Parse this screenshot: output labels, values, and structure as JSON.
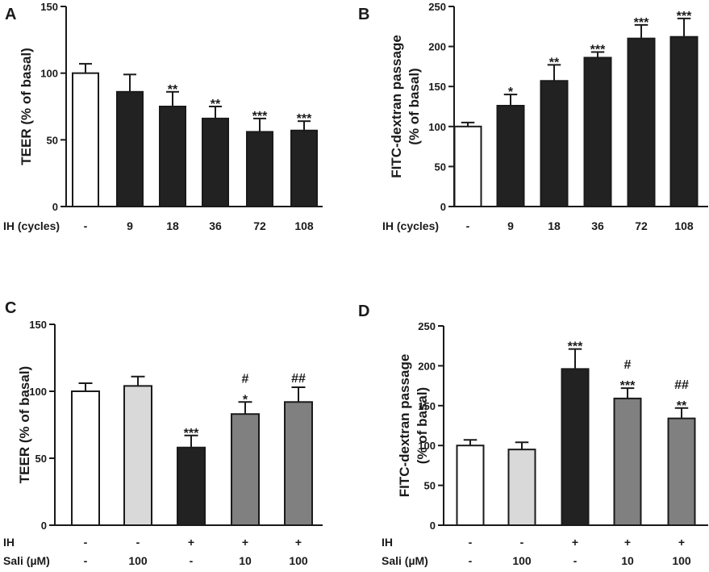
{
  "chart_data": [
    {
      "panel": "A",
      "type": "bar",
      "ylabel": "TEER (% of basal)",
      "ylim": [
        0,
        150
      ],
      "yticks": [
        0,
        50,
        100,
        150
      ],
      "row_labels": [
        "IH (cycles)"
      ],
      "categories": [
        [
          "-"
        ],
        [
          "9"
        ],
        [
          "18"
        ],
        [
          "36"
        ],
        [
          "72"
        ],
        [
          "108"
        ]
      ],
      "values": [
        100,
        86,
        75,
        66,
        56,
        57
      ],
      "errors": [
        7,
        13,
        11,
        9,
        10,
        7
      ],
      "colors": [
        "#ffffff",
        "#222222",
        "#222222",
        "#222222",
        "#222222",
        "#222222"
      ],
      "annotations": [
        [],
        [],
        [
          "**"
        ],
        [
          "**"
        ],
        [
          "***"
        ],
        [
          "***"
        ]
      ]
    },
    {
      "panel": "B",
      "type": "bar",
      "ylabel": "FITC-dextran passage (% of basal)",
      "ylabel_lines": [
        "FITC-dextran passage",
        "(% of basal)"
      ],
      "ylim": [
        0,
        250
      ],
      "yticks": [
        0,
        50,
        100,
        150,
        200,
        250
      ],
      "row_labels": [
        "IH (cycles)"
      ],
      "categories": [
        [
          "-"
        ],
        [
          "9"
        ],
        [
          "18"
        ],
        [
          "36"
        ],
        [
          "72"
        ],
        [
          "108"
        ]
      ],
      "values": [
        100,
        126,
        157,
        186,
        210,
        212
      ],
      "errors": [
        5,
        14,
        20,
        7,
        17,
        23
      ],
      "colors": [
        "#ffffff",
        "#222222",
        "#222222",
        "#222222",
        "#222222",
        "#222222"
      ],
      "annotations": [
        [],
        [
          "*"
        ],
        [
          "**"
        ],
        [
          "***"
        ],
        [
          "***"
        ],
        [
          "***"
        ]
      ]
    },
    {
      "panel": "C",
      "type": "bar",
      "ylabel": "TEER (% of basal)",
      "ylim": [
        0,
        150
      ],
      "yticks": [
        0,
        50,
        100,
        150
      ],
      "row_labels": [
        "IH",
        "Sali (µM)"
      ],
      "categories": [
        [
          "-",
          "-"
        ],
        [
          "-",
          "100"
        ],
        [
          "+",
          "-"
        ],
        [
          "+",
          "10"
        ],
        [
          "+",
          "100"
        ]
      ],
      "values": [
        100,
        104,
        58,
        83,
        92
      ],
      "errors": [
        6,
        7,
        9,
        9,
        11
      ],
      "colors": [
        "#ffffff",
        "#d9d9d9",
        "#222222",
        "#808080",
        "#808080"
      ],
      "annotations": [
        [],
        [],
        [
          "***"
        ],
        [
          "#",
          "*"
        ],
        [
          "##"
        ]
      ]
    },
    {
      "panel": "D",
      "type": "bar",
      "ylabel": "FITC-dextran passage (% of basal)",
      "ylabel_lines": [
        "FITC-dextran passage",
        "(% of basal)"
      ],
      "ylim": [
        0,
        250
      ],
      "yticks": [
        0,
        50,
        100,
        150,
        200,
        250
      ],
      "row_labels": [
        "IH",
        "Sali (µM)"
      ],
      "categories": [
        [
          "-",
          "-"
        ],
        [
          "-",
          "100"
        ],
        [
          "+",
          "-"
        ],
        [
          "+",
          "10"
        ],
        [
          "+",
          "100"
        ]
      ],
      "values": [
        100,
        95,
        196,
        159,
        134
      ],
      "errors": [
        7,
        9,
        25,
        13,
        13
      ],
      "colors": [
        "#ffffff",
        "#d9d9d9",
        "#222222",
        "#808080",
        "#808080"
      ],
      "annotations": [
        [],
        [],
        [
          "***"
        ],
        [
          "#",
          "***"
        ],
        [
          "##",
          "**"
        ]
      ]
    }
  ]
}
